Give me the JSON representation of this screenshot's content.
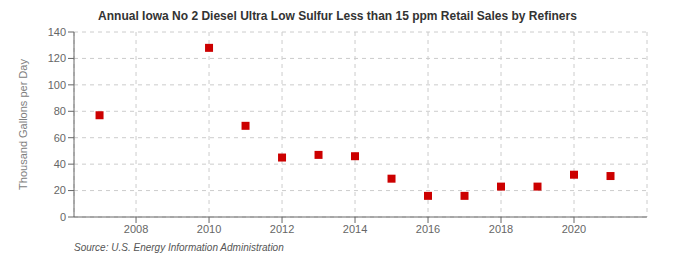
{
  "chart_data": {
    "type": "scatter",
    "title": "Annual Iowa No 2 Diesel Ultra Low Sulfur Less than 15 ppm Retail Sales by Refiners",
    "ylabel": "Thousand Gallons per Day",
    "annotation": "Source: U.S. Energy Information Administration",
    "x": [
      2007,
      2010,
      2011,
      2012,
      2013,
      2014,
      2015,
      2016,
      2017,
      2018,
      2019,
      2020,
      2021
    ],
    "values": [
      77,
      128,
      69,
      45,
      47,
      46,
      29,
      16,
      16,
      23,
      23,
      32,
      31
    ],
    "color": "#cc0000",
    "marker": "square",
    "xlim": [
      2006.3,
      2022.0
    ],
    "ylim": [
      0,
      140
    ],
    "xticks": [
      2008,
      2010,
      2012,
      2014,
      2016,
      2018,
      2020
    ],
    "yticks": [
      0,
      20,
      40,
      60,
      80,
      100,
      120,
      140
    ],
    "grid": true
  }
}
